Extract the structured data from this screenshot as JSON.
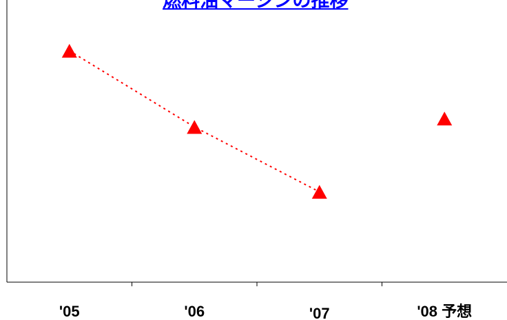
{
  "chart_data": {
    "type": "scatter",
    "title": "燃料油マージンの推移",
    "categories": [
      "'05",
      "'06",
      "'07",
      "'08 予想"
    ],
    "series": [
      {
        "values": [
          4.1,
          2.75,
          1.6,
          2.9
        ],
        "marker": "triangle",
        "color": "#ff0000",
        "connector": "dotted",
        "connected_points": [
          0,
          1,
          2
        ]
      }
    ],
    "xlabel": "",
    "ylabel": "",
    "ylim": [
      0,
      5
    ],
    "grid": false,
    "y_tick_labels_shown": false
  }
}
